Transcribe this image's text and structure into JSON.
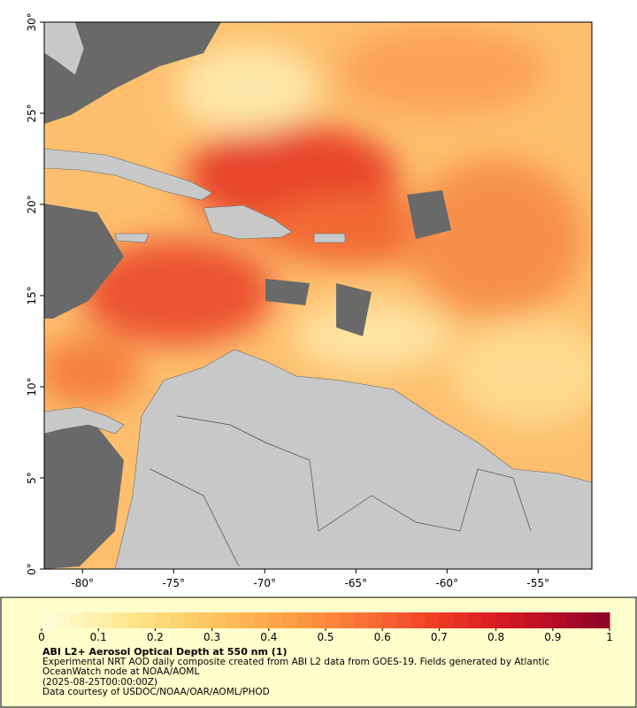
{
  "map": {
    "xlim": [
      -82.1,
      -52.05
    ],
    "ylim": [
      0,
      30
    ],
    "xticks": [
      {
        "value": -80,
        "label": "-80°"
      },
      {
        "value": -75,
        "label": "-75°"
      },
      {
        "value": -70,
        "label": "-70°"
      },
      {
        "value": -65,
        "label": "-65°"
      },
      {
        "value": -60,
        "label": "-60°"
      },
      {
        "value": -55,
        "label": "-55°"
      }
    ],
    "yticks": [
      {
        "value": 0,
        "label": "0°"
      },
      {
        "value": 5,
        "label": "5°"
      },
      {
        "value": 10,
        "label": "10°"
      },
      {
        "value": 15,
        "label": "15°"
      },
      {
        "value": 20,
        "label": "20°"
      },
      {
        "value": 25,
        "label": "25°"
      },
      {
        "value": 30,
        "label": "30°"
      }
    ]
  },
  "colorbar": {
    "range": [
      0,
      1
    ],
    "ticks": [
      0,
      0.1,
      0.2,
      0.3,
      0.4,
      0.5,
      0.6,
      0.7,
      0.8,
      0.9,
      1
    ],
    "colors": [
      "#ffffe0",
      "#fff0a8",
      "#fedc7c",
      "#fec460",
      "#fda94a",
      "#fc8a3c",
      "#f86432",
      "#ee3a24",
      "#d91b22",
      "#b70d26",
      "#8b0028"
    ]
  },
  "caption": {
    "title": "ABI L2+ Aerosol Optical Depth at 550 nm (1)",
    "lines": [
      "Experimental NRT AOD daily composite created from ABI L2 data from GOES-19. Fields generated by Atlantic OceanWatch node at NOAA/AOML",
      "(2025-08-25T00:00:00Z)",
      "Data courtesy of USDOC/NOAA/OAR/AOML/PHOD"
    ]
  }
}
